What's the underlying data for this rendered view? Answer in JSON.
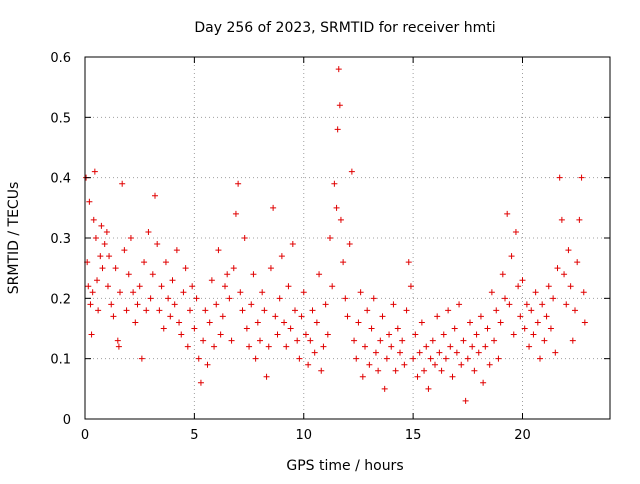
{
  "chart_data": {
    "type": "scatter",
    "title": "Day 256 of 2023, SRMTID for receiver hmti",
    "xlabel": "GPS time / hours",
    "ylabel": "SRMTID / TECUs",
    "xlim": [
      0,
      24
    ],
    "ylim": [
      0,
      0.6
    ],
    "xticks": [
      0,
      5,
      10,
      15,
      20
    ],
    "yticks": [
      0,
      0.1,
      0.2,
      0.3,
      0.4,
      0.5,
      0.6
    ],
    "xtick_labels": [
      "0",
      "5",
      "10",
      "15",
      "20"
    ],
    "ytick_labels": [
      "0",
      "0.1",
      "0.2",
      "0.3",
      "0.4",
      "0.5",
      "0.6"
    ],
    "grid": true,
    "marker": "+",
    "colors": {
      "series": "#e00000",
      "grid": "#a0a0a0",
      "axis": "#000000"
    },
    "series": [
      {
        "name": "SRMTID",
        "points": [
          [
            0.05,
            0.4
          ],
          [
            0.1,
            0.26
          ],
          [
            0.15,
            0.22
          ],
          [
            0.2,
            0.36
          ],
          [
            0.25,
            0.19
          ],
          [
            0.3,
            0.14
          ],
          [
            0.35,
            0.21
          ],
          [
            0.4,
            0.33
          ],
          [
            0.45,
            0.41
          ],
          [
            0.5,
            0.3
          ],
          [
            0.55,
            0.23
          ],
          [
            0.6,
            0.18
          ],
          [
            0.7,
            0.27
          ],
          [
            0.75,
            0.32
          ],
          [
            0.8,
            0.25
          ],
          [
            0.9,
            0.29
          ],
          [
            1.0,
            0.31
          ],
          [
            1.05,
            0.22
          ],
          [
            1.1,
            0.27
          ],
          [
            1.2,
            0.19
          ],
          [
            1.3,
            0.17
          ],
          [
            1.4,
            0.25
          ],
          [
            1.5,
            0.13
          ],
          [
            1.55,
            0.12
          ],
          [
            1.6,
            0.21
          ],
          [
            1.7,
            0.39
          ],
          [
            1.8,
            0.28
          ],
          [
            1.9,
            0.18
          ],
          [
            2.0,
            0.24
          ],
          [
            2.1,
            0.3
          ],
          [
            2.2,
            0.21
          ],
          [
            2.3,
            0.16
          ],
          [
            2.4,
            0.19
          ],
          [
            2.5,
            0.22
          ],
          [
            2.6,
            0.1
          ],
          [
            2.7,
            0.26
          ],
          [
            2.8,
            0.18
          ],
          [
            2.9,
            0.31
          ],
          [
            3.0,
            0.2
          ],
          [
            3.1,
            0.24
          ],
          [
            3.2,
            0.37
          ],
          [
            3.3,
            0.29
          ],
          [
            3.4,
            0.18
          ],
          [
            3.5,
            0.22
          ],
          [
            3.6,
            0.15
          ],
          [
            3.7,
            0.26
          ],
          [
            3.8,
            0.2
          ],
          [
            3.9,
            0.17
          ],
          [
            4.0,
            0.23
          ],
          [
            4.1,
            0.19
          ],
          [
            4.2,
            0.28
          ],
          [
            4.3,
            0.16
          ],
          [
            4.4,
            0.14
          ],
          [
            4.5,
            0.21
          ],
          [
            4.6,
            0.25
          ],
          [
            4.7,
            0.12
          ],
          [
            4.8,
            0.18
          ],
          [
            4.9,
            0.22
          ],
          [
            5.0,
            0.15
          ],
          [
            5.1,
            0.2
          ],
          [
            5.2,
            0.1
          ],
          [
            5.3,
            0.06
          ],
          [
            5.4,
            0.13
          ],
          [
            5.5,
            0.18
          ],
          [
            5.6,
            0.09
          ],
          [
            5.7,
            0.16
          ],
          [
            5.8,
            0.23
          ],
          [
            5.9,
            0.12
          ],
          [
            6.0,
            0.19
          ],
          [
            6.1,
            0.28
          ],
          [
            6.2,
            0.14
          ],
          [
            6.3,
            0.17
          ],
          [
            6.4,
            0.22
          ],
          [
            6.5,
            0.24
          ],
          [
            6.6,
            0.2
          ],
          [
            6.7,
            0.13
          ],
          [
            6.8,
            0.25
          ],
          [
            6.9,
            0.34
          ],
          [
            7.0,
            0.39
          ],
          [
            7.1,
            0.21
          ],
          [
            7.2,
            0.18
          ],
          [
            7.3,
            0.3
          ],
          [
            7.4,
            0.15
          ],
          [
            7.5,
            0.12
          ],
          [
            7.6,
            0.19
          ],
          [
            7.7,
            0.24
          ],
          [
            7.8,
            0.1
          ],
          [
            7.9,
            0.16
          ],
          [
            8.0,
            0.13
          ],
          [
            8.1,
            0.21
          ],
          [
            8.2,
            0.18
          ],
          [
            8.3,
            0.07
          ],
          [
            8.4,
            0.12
          ],
          [
            8.5,
            0.25
          ],
          [
            8.6,
            0.35
          ],
          [
            8.7,
            0.17
          ],
          [
            8.8,
            0.14
          ],
          [
            8.9,
            0.2
          ],
          [
            9.0,
            0.27
          ],
          [
            9.1,
            0.16
          ],
          [
            9.2,
            0.12
          ],
          [
            9.3,
            0.22
          ],
          [
            9.4,
            0.15
          ],
          [
            9.5,
            0.29
          ],
          [
            9.6,
            0.18
          ],
          [
            9.7,
            0.13
          ],
          [
            9.8,
            0.1
          ],
          [
            9.9,
            0.17
          ],
          [
            10.0,
            0.21
          ],
          [
            10.1,
            0.14
          ],
          [
            10.2,
            0.09
          ],
          [
            10.3,
            0.13
          ],
          [
            10.4,
            0.18
          ],
          [
            10.5,
            0.11
          ],
          [
            10.6,
            0.16
          ],
          [
            10.7,
            0.24
          ],
          [
            10.8,
            0.08
          ],
          [
            10.9,
            0.12
          ],
          [
            11.0,
            0.19
          ],
          [
            11.1,
            0.14
          ],
          [
            11.2,
            0.3
          ],
          [
            11.3,
            0.22
          ],
          [
            11.4,
            0.39
          ],
          [
            11.5,
            0.35
          ],
          [
            11.55,
            0.48
          ],
          [
            11.6,
            0.58
          ],
          [
            11.65,
            0.52
          ],
          [
            11.7,
            0.33
          ],
          [
            11.8,
            0.26
          ],
          [
            11.9,
            0.2
          ],
          [
            12.0,
            0.17
          ],
          [
            12.1,
            0.29
          ],
          [
            12.2,
            0.41
          ],
          [
            12.3,
            0.13
          ],
          [
            12.4,
            0.1
          ],
          [
            12.5,
            0.16
          ],
          [
            12.6,
            0.21
          ],
          [
            12.7,
            0.07
          ],
          [
            12.8,
            0.12
          ],
          [
            12.9,
            0.18
          ],
          [
            13.0,
            0.09
          ],
          [
            13.1,
            0.15
          ],
          [
            13.2,
            0.2
          ],
          [
            13.3,
            0.11
          ],
          [
            13.4,
            0.08
          ],
          [
            13.5,
            0.13
          ],
          [
            13.6,
            0.17
          ],
          [
            13.7,
            0.05
          ],
          [
            13.8,
            0.1
          ],
          [
            13.9,
            0.14
          ],
          [
            14.0,
            0.12
          ],
          [
            14.1,
            0.19
          ],
          [
            14.2,
            0.08
          ],
          [
            14.3,
            0.15
          ],
          [
            14.4,
            0.11
          ],
          [
            14.5,
            0.13
          ],
          [
            14.6,
            0.09
          ],
          [
            14.7,
            0.18
          ],
          [
            14.8,
            0.26
          ],
          [
            14.9,
            0.22
          ],
          [
            15.0,
            0.1
          ],
          [
            15.1,
            0.14
          ],
          [
            15.2,
            0.07
          ],
          [
            15.3,
            0.11
          ],
          [
            15.4,
            0.16
          ],
          [
            15.5,
            0.08
          ],
          [
            15.6,
            0.12
          ],
          [
            15.7,
            0.05
          ],
          [
            15.8,
            0.1
          ],
          [
            15.9,
            0.13
          ],
          [
            16.0,
            0.09
          ],
          [
            16.1,
            0.17
          ],
          [
            16.2,
            0.11
          ],
          [
            16.3,
            0.08
          ],
          [
            16.4,
            0.14
          ],
          [
            16.5,
            0.1
          ],
          [
            16.6,
            0.18
          ],
          [
            16.7,
            0.12
          ],
          [
            16.8,
            0.07
          ],
          [
            16.9,
            0.15
          ],
          [
            17.0,
            0.11
          ],
          [
            17.1,
            0.19
          ],
          [
            17.2,
            0.09
          ],
          [
            17.3,
            0.13
          ],
          [
            17.4,
            0.03
          ],
          [
            17.5,
            0.1
          ],
          [
            17.6,
            0.16
          ],
          [
            17.7,
            0.12
          ],
          [
            17.8,
            0.08
          ],
          [
            17.9,
            0.14
          ],
          [
            18.0,
            0.11
          ],
          [
            18.1,
            0.17
          ],
          [
            18.2,
            0.06
          ],
          [
            18.3,
            0.12
          ],
          [
            18.4,
            0.15
          ],
          [
            18.5,
            0.09
          ],
          [
            18.6,
            0.21
          ],
          [
            18.7,
            0.13
          ],
          [
            18.8,
            0.18
          ],
          [
            18.9,
            0.1
          ],
          [
            19.0,
            0.16
          ],
          [
            19.1,
            0.24
          ],
          [
            19.2,
            0.2
          ],
          [
            19.3,
            0.34
          ],
          [
            19.4,
            0.19
          ],
          [
            19.5,
            0.27
          ],
          [
            19.6,
            0.14
          ],
          [
            19.7,
            0.31
          ],
          [
            19.8,
            0.22
          ],
          [
            19.9,
            0.17
          ],
          [
            20.0,
            0.23
          ],
          [
            20.1,
            0.15
          ],
          [
            20.2,
            0.19
          ],
          [
            20.3,
            0.12
          ],
          [
            20.4,
            0.18
          ],
          [
            20.5,
            0.14
          ],
          [
            20.6,
            0.21
          ],
          [
            20.7,
            0.16
          ],
          [
            20.8,
            0.1
          ],
          [
            20.9,
            0.19
          ],
          [
            21.0,
            0.13
          ],
          [
            21.1,
            0.17
          ],
          [
            21.2,
            0.22
          ],
          [
            21.3,
            0.15
          ],
          [
            21.4,
            0.2
          ],
          [
            21.5,
            0.11
          ],
          [
            21.6,
            0.25
          ],
          [
            21.7,
            0.4
          ],
          [
            21.8,
            0.33
          ],
          [
            21.9,
            0.24
          ],
          [
            22.0,
            0.19
          ],
          [
            22.1,
            0.28
          ],
          [
            22.2,
            0.22
          ],
          [
            22.3,
            0.13
          ],
          [
            22.4,
            0.18
          ],
          [
            22.5,
            0.26
          ],
          [
            22.6,
            0.33
          ],
          [
            22.7,
            0.4
          ],
          [
            22.8,
            0.21
          ],
          [
            22.85,
            0.16
          ]
        ]
      }
    ]
  }
}
